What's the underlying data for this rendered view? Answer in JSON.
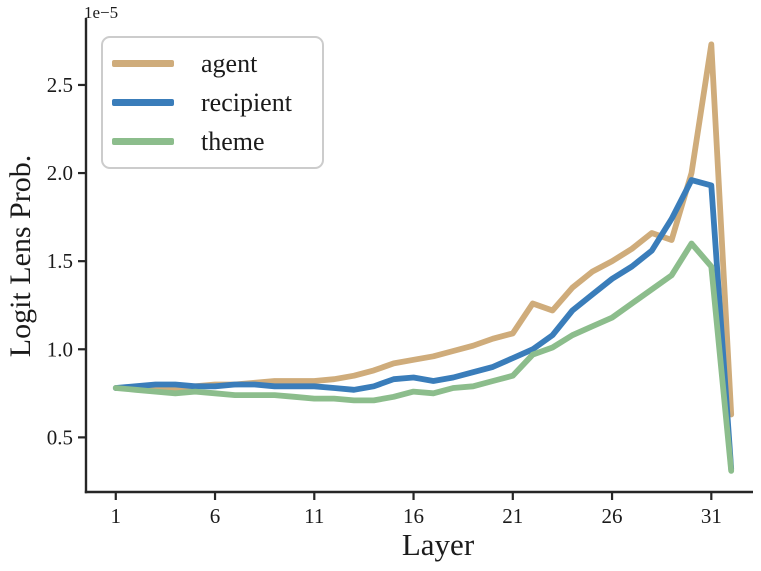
{
  "chart_data": {
    "type": "line",
    "title": "",
    "xlabel": "Layer",
    "ylabel": "Logit Lens Prob.",
    "offset_text": "1e−5",
    "x_ticks": [
      1,
      6,
      11,
      16,
      21,
      26,
      31
    ],
    "y_ticks": [
      "0.5",
      "1.0",
      "1.5",
      "2.0",
      "2.5"
    ],
    "y_tick_values": [
      0.5,
      1.0,
      1.5,
      2.0,
      2.5
    ],
    "xlim": [
      -0.5,
      33.1
    ],
    "ylim": [
      0.19,
      2.88
    ],
    "grid": false,
    "legend_position": "upper-left",
    "x": [
      1,
      2,
      3,
      4,
      5,
      6,
      7,
      8,
      9,
      10,
      11,
      12,
      13,
      14,
      15,
      16,
      17,
      18,
      19,
      20,
      21,
      22,
      23,
      24,
      25,
      26,
      27,
      28,
      29,
      30,
      31,
      32
    ],
    "y_unit_scale": "1e-5",
    "series": [
      {
        "name": "agent",
        "color": "#CFAC7B",
        "values": [
          0.78,
          0.78,
          0.78,
          0.78,
          0.79,
          0.8,
          0.8,
          0.81,
          0.82,
          0.82,
          0.82,
          0.83,
          0.85,
          0.88,
          0.92,
          0.94,
          0.96,
          0.99,
          1.02,
          1.06,
          1.09,
          1.26,
          1.22,
          1.35,
          1.44,
          1.5,
          1.57,
          1.66,
          1.62,
          2.0,
          2.73,
          0.63
        ]
      },
      {
        "name": "recipient",
        "color": "#3A7DBA",
        "values": [
          0.78,
          0.79,
          0.8,
          0.8,
          0.79,
          0.79,
          0.8,
          0.8,
          0.79,
          0.79,
          0.79,
          0.78,
          0.77,
          0.79,
          0.83,
          0.84,
          0.82,
          0.84,
          0.87,
          0.9,
          0.95,
          1.0,
          1.08,
          1.22,
          1.31,
          1.4,
          1.47,
          1.56,
          1.74,
          1.96,
          1.93,
          0.32
        ]
      },
      {
        "name": "theme",
        "color": "#8CBD8C",
        "values": [
          0.78,
          0.77,
          0.76,
          0.75,
          0.76,
          0.75,
          0.74,
          0.74,
          0.74,
          0.73,
          0.72,
          0.72,
          0.71,
          0.71,
          0.73,
          0.76,
          0.75,
          0.78,
          0.79,
          0.82,
          0.85,
          0.97,
          1.01,
          1.08,
          1.13,
          1.18,
          1.26,
          1.34,
          1.42,
          1.6,
          1.47,
          0.31
        ]
      }
    ],
    "axis_color": "#262626",
    "tick_label_color": "#1b1b1b"
  }
}
